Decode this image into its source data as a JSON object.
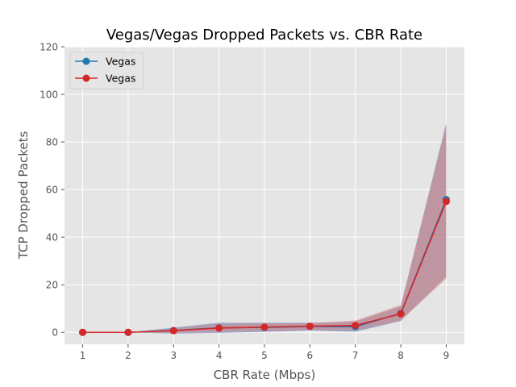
{
  "chart_data": {
    "type": "line",
    "title": "Vegas/Vegas Dropped Packets vs. CBR Rate",
    "xlabel": "CBR Rate (Mbps)",
    "ylabel": "TCP Dropped Packets",
    "xlim": [
      0.6,
      9.4
    ],
    "ylim": [
      -5,
      120
    ],
    "x_ticks": [
      1,
      2,
      3,
      4,
      5,
      6,
      7,
      8,
      9
    ],
    "y_ticks": [
      0,
      20,
      40,
      60,
      80,
      100,
      120
    ],
    "grid": true,
    "legend_position": "top-left",
    "x": [
      1,
      2,
      3,
      4,
      5,
      6,
      7,
      8,
      9
    ],
    "series": [
      {
        "name": "Vegas",
        "color": "#1f77b4",
        "band_color": "#6b6b9e",
        "values": [
          0,
          0,
          0.8,
          1.9,
          2.1,
          2.5,
          2.4,
          8.0,
          55.8
        ],
        "lower": [
          0,
          0,
          -0.5,
          -0.2,
          0.2,
          0.8,
          0.3,
          4.8,
          23.5
        ],
        "upper": [
          0,
          0,
          2.0,
          4.0,
          4.0,
          4.0,
          4.5,
          11.0,
          88.0
        ]
      },
      {
        "name": "Vegas",
        "color": "#d62728",
        "band_color": "#d98a8a",
        "values": [
          0,
          0,
          0.7,
          1.8,
          2.2,
          2.6,
          2.9,
          7.8,
          55.0
        ],
        "lower": [
          0,
          0,
          0,
          0.5,
          0.8,
          1.2,
          1.3,
          5.0,
          22.5
        ],
        "upper": [
          0,
          0,
          1.4,
          3.1,
          3.5,
          3.8,
          5.0,
          11.5,
          86.0
        ]
      }
    ]
  }
}
